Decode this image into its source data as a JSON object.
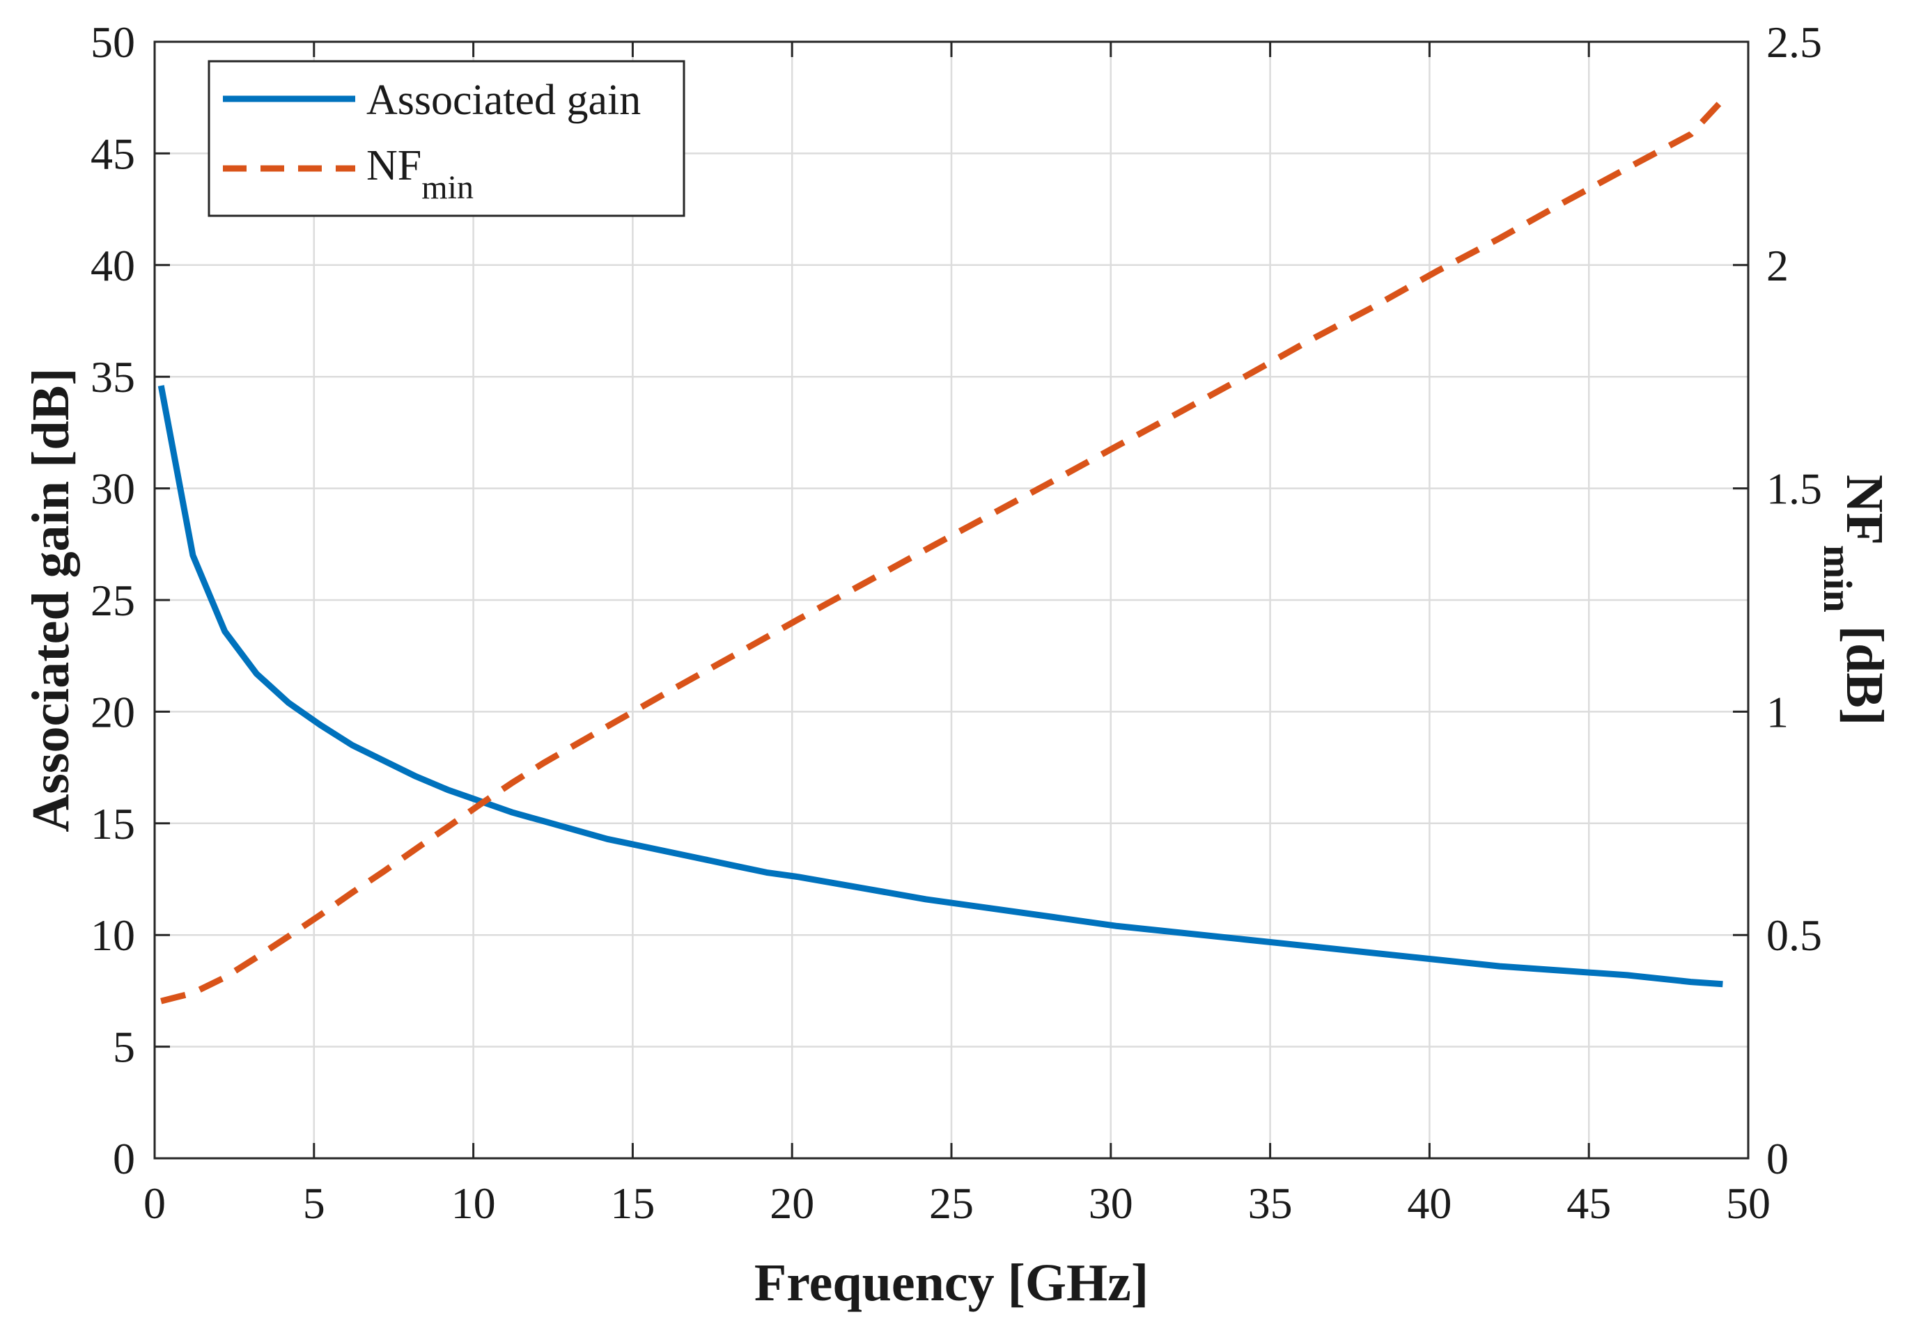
{
  "chart_data": {
    "type": "line",
    "xlabel": "Frequency [GHz]",
    "ylabel_left": "Associated gain [dB]",
    "ylabel_right_main": "NF",
    "ylabel_right_sub": "min",
    "ylabel_right_tail": " [dB]",
    "xlim": [
      0,
      50
    ],
    "ylim_left": [
      0,
      50
    ],
    "ylim_right": [
      0,
      2.5
    ],
    "grid": true,
    "legend_position": "top-left",
    "x_ticks": [
      "0",
      "5",
      "10",
      "15",
      "20",
      "25",
      "30",
      "35",
      "40",
      "45",
      "50"
    ],
    "y_left_ticks": [
      "0",
      "5",
      "10",
      "15",
      "20",
      "25",
      "30",
      "35",
      "40",
      "45",
      "50"
    ],
    "y_right_ticks": [
      "0",
      "0.5",
      "1",
      "1.5",
      "2",
      "2.5"
    ],
    "series": [
      {
        "name": "Associated gain",
        "legend_label": "Associated gain",
        "axis": "left",
        "color": "#0072BD",
        "style": "solid",
        "x": [
          0.2,
          1.2,
          2.2,
          3.2,
          4.2,
          5.2,
          6.2,
          7.2,
          8.2,
          9.2,
          10.2,
          11.2,
          12.2,
          13.2,
          14.2,
          15.2,
          16.2,
          17.2,
          18.2,
          19.2,
          20.2,
          22.2,
          24.2,
          26.2,
          28.2,
          30.2,
          32.2,
          34.2,
          36.2,
          38.2,
          40.2,
          42.2,
          44.2,
          46.2,
          48.2,
          49.2
        ],
        "y": [
          34.6,
          27.0,
          23.6,
          21.7,
          20.4,
          19.4,
          18.5,
          17.8,
          17.1,
          16.5,
          16.0,
          15.5,
          15.1,
          14.7,
          14.3,
          14.0,
          13.7,
          13.4,
          13.1,
          12.8,
          12.6,
          12.1,
          11.6,
          11.2,
          10.8,
          10.4,
          10.1,
          9.8,
          9.5,
          9.2,
          8.9,
          8.6,
          8.4,
          8.2,
          7.9,
          7.8
        ]
      },
      {
        "name": "NFmin",
        "legend_main": "NF",
        "legend_sub": "min",
        "axis": "right",
        "color": "#D95319",
        "style": "dashed",
        "x": [
          0.2,
          1.2,
          2.2,
          3.2,
          4.2,
          5.2,
          6.2,
          7.2,
          8.2,
          9.2,
          10.2,
          11.2,
          12.2,
          14.2,
          16.2,
          18.2,
          20.2,
          22.2,
          24.2,
          26.2,
          28.2,
          30.2,
          32.2,
          34.2,
          36.2,
          38.2,
          40.2,
          42.2,
          44.2,
          46.2,
          48.2,
          49.2
        ],
        "y": [
          0.352,
          0.37,
          0.405,
          0.45,
          0.497,
          0.545,
          0.595,
          0.643,
          0.693,
          0.742,
          0.792,
          0.84,
          0.885,
          0.967,
          1.048,
          1.127,
          1.207,
          1.285,
          1.363,
          1.44,
          1.517,
          1.595,
          1.672,
          1.75,
          1.83,
          1.905,
          1.985,
          2.06,
          2.14,
          2.217,
          2.293,
          2.37
        ]
      }
    ]
  }
}
